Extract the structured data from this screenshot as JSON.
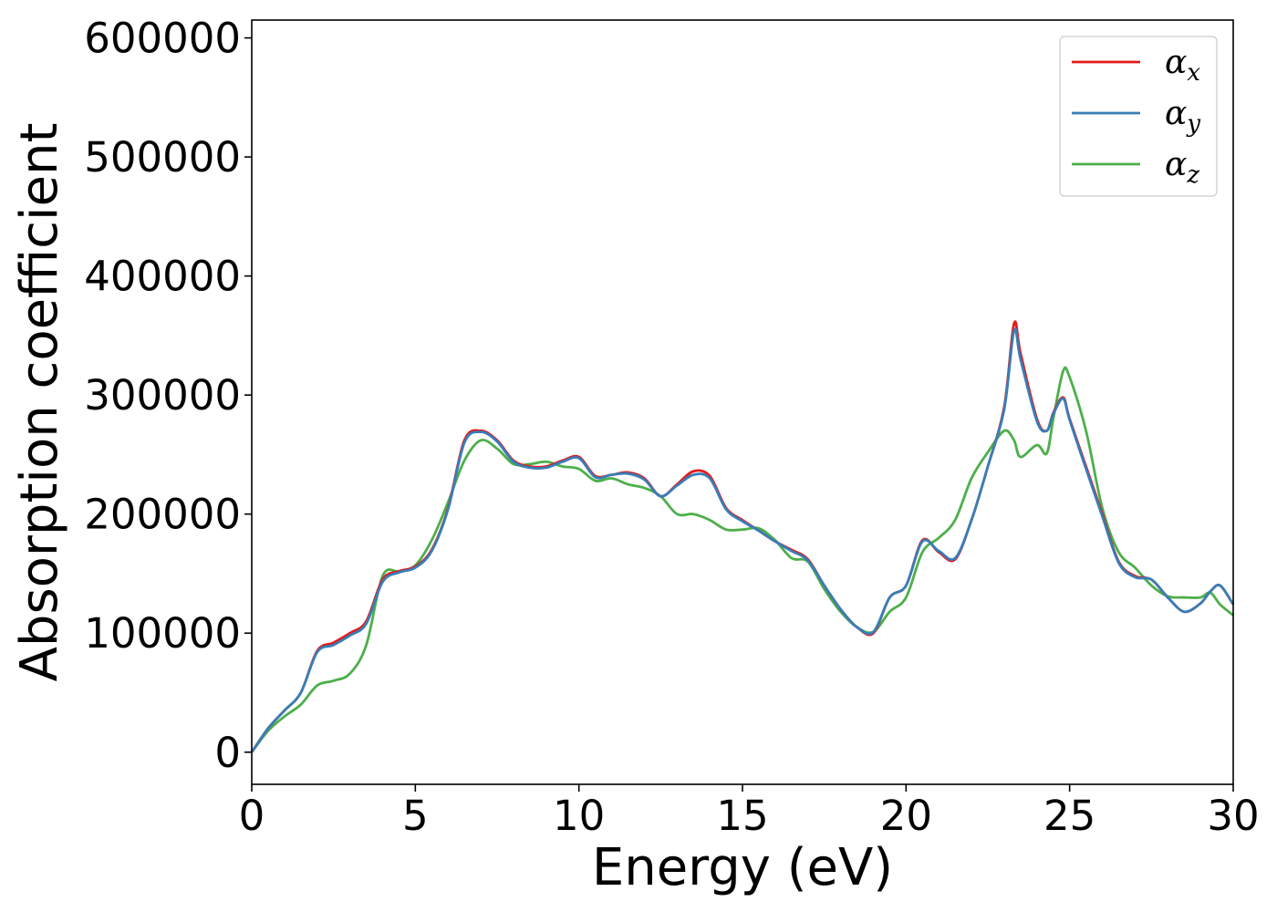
{
  "chart_data": {
    "type": "line",
    "xlabel": "Energy (eV)",
    "ylabel": "Absorption coefficient",
    "xlim": [
      0,
      30
    ],
    "ylim": [
      -27000,
      615000
    ],
    "xticks": [
      0,
      5,
      10,
      15,
      20,
      25,
      30
    ],
    "xtick_labels": [
      "0",
      "5",
      "10",
      "15",
      "20",
      "25",
      "30"
    ],
    "yticks": [
      0,
      100000,
      200000,
      300000,
      400000,
      500000,
      600000
    ],
    "ytick_labels": [
      "0",
      "100000",
      "200000",
      "300000",
      "400000",
      "500000",
      "600000"
    ],
    "grid": false,
    "legend_position": "top-right",
    "x": [
      0,
      0.5,
      1.0,
      1.5,
      2.0,
      2.5,
      3.0,
      3.5,
      4.0,
      4.5,
      5.0,
      5.5,
      6.0,
      6.5,
      7.0,
      7.5,
      8.0,
      8.5,
      9.0,
      9.5,
      10.0,
      10.5,
      11.0,
      11.5,
      12.0,
      12.5,
      13.0,
      13.5,
      14.0,
      14.5,
      15.0,
      15.5,
      16.0,
      16.5,
      17.0,
      17.5,
      18.0,
      18.5,
      19.0,
      19.5,
      20.0,
      20.5,
      21.0,
      21.5,
      22.0,
      22.5,
      23.0,
      23.3,
      23.5,
      24.0,
      24.3,
      24.5,
      24.8,
      25.0,
      25.5,
      26.0,
      26.5,
      27.0,
      27.5,
      28.0,
      28.5,
      29.0,
      29.3,
      29.6,
      30.0
    ],
    "series": [
      {
        "name": "x",
        "color": "#e41a1c",
        "values": [
          0,
          20000,
          35000,
          50000,
          85000,
          92000,
          100000,
          110000,
          145000,
          152000,
          156000,
          170000,
          205000,
          262000,
          270000,
          262000,
          245000,
          240000,
          240000,
          245000,
          248000,
          232000,
          233000,
          235000,
          230000,
          215000,
          225000,
          236000,
          232000,
          205000,
          195000,
          186000,
          177000,
          170000,
          162000,
          140000,
          120000,
          105000,
          100000,
          130000,
          140000,
          178000,
          168000,
          162000,
          195000,
          240000,
          290000,
          360000,
          335000,
          280000,
          270000,
          285000,
          298000,
          280000,
          240000,
          200000,
          160000,
          148000,
          145000,
          130000,
          118000,
          125000,
          135000,
          140000,
          124000
        ]
      },
      {
        "name": "y",
        "color": "#377eb8",
        "values": [
          0,
          20000,
          35000,
          50000,
          84000,
          90000,
          98000,
          108000,
          143000,
          151000,
          155000,
          169000,
          204000,
          260000,
          269000,
          261000,
          244000,
          239000,
          239000,
          244000,
          247000,
          231000,
          233000,
          234000,
          229000,
          215000,
          224000,
          233000,
          230000,
          204000,
          194000,
          186000,
          177000,
          169000,
          161000,
          140000,
          120000,
          105000,
          101000,
          130000,
          140000,
          177000,
          169000,
          163000,
          195000,
          240000,
          288000,
          354000,
          330000,
          278000,
          270000,
          284000,
          297000,
          279000,
          238000,
          198000,
          159000,
          147000,
          145000,
          130000,
          118000,
          125000,
          135000,
          140000,
          124000
        ]
      },
      {
        "name": "z",
        "color": "#4daf4a",
        "values": [
          0,
          18000,
          30000,
          40000,
          56000,
          60000,
          66000,
          90000,
          148000,
          152000,
          157000,
          178000,
          210000,
          245000,
          262000,
          255000,
          242000,
          242000,
          244000,
          240000,
          238000,
          228000,
          230000,
          225000,
          222000,
          215000,
          200000,
          200000,
          195000,
          187000,
          187000,
          188000,
          178000,
          163000,
          160000,
          137000,
          118000,
          105000,
          101000,
          118000,
          130000,
          168000,
          180000,
          195000,
          230000,
          252000,
          270000,
          262000,
          248000,
          258000,
          251000,
          280000,
          320000,
          315000,
          270000,
          205000,
          168000,
          155000,
          140000,
          131000,
          130000,
          130000,
          134000,
          124000,
          115000
        ]
      }
    ]
  }
}
